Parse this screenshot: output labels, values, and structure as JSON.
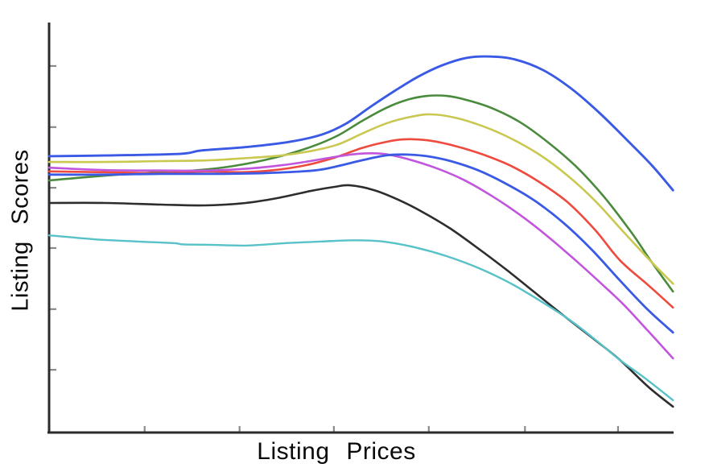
{
  "chart_data": {
    "type": "line",
    "title": "",
    "xlabel": "Listing Prices",
    "ylabel": "Listing Scores",
    "background_color": "#ffffff",
    "axis_color": "#2b2b2b",
    "tick_color": "#8a8a8a",
    "legend": "none",
    "grid": false,
    "axes_note": "no numeric tick labels shown; ticks point inward; coordinates below are percent of plot area (x: 0=left axis to 100=right end, y: 0=bottom axis to 100=top of y-axis)",
    "x_ticks_pct": [
      15.3,
      30.5,
      45.6,
      60.8,
      76.2,
      91.1
    ],
    "y_ticks_pct": [
      15.3,
      30.1,
      45.0,
      59.7,
      74.5,
      89.4
    ],
    "series": [
      {
        "name": "blue-top",
        "color": "#3a5ae6",
        "width": 2.9,
        "points": [
          [
            0,
            67.4
          ],
          [
            10.2,
            67.6
          ],
          [
            21.1,
            68.0
          ],
          [
            24.4,
            68.8
          ],
          [
            32.1,
            69.7
          ],
          [
            38.5,
            70.9
          ],
          [
            43.7,
            72.7
          ],
          [
            47.6,
            75.4
          ],
          [
            51.4,
            79.4
          ],
          [
            55.3,
            83.3
          ],
          [
            59.1,
            86.8
          ],
          [
            63.0,
            89.6
          ],
          [
            66.9,
            91.4
          ],
          [
            70.7,
            91.7
          ],
          [
            74.6,
            91.0
          ],
          [
            79.1,
            88.4
          ],
          [
            83.6,
            83.9
          ],
          [
            88.1,
            78.0
          ],
          [
            92.7,
            71.1
          ],
          [
            96.5,
            65.2
          ],
          [
            99.9,
            59.1
          ]
        ]
      },
      {
        "name": "green",
        "color": "#4a8a3c",
        "width": 2.6,
        "points": [
          [
            0,
            61.5
          ],
          [
            7.6,
            62.5
          ],
          [
            15.3,
            63.3
          ],
          [
            23.1,
            63.9
          ],
          [
            29.5,
            65.0
          ],
          [
            36.0,
            67.0
          ],
          [
            41.8,
            69.6
          ],
          [
            46.3,
            72.5
          ],
          [
            50.1,
            76.0
          ],
          [
            54.0,
            79.2
          ],
          [
            57.2,
            81.1
          ],
          [
            60.5,
            82.1
          ],
          [
            63.7,
            82.1
          ],
          [
            66.9,
            81.1
          ],
          [
            70.8,
            79.2
          ],
          [
            75.3,
            75.8
          ],
          [
            79.8,
            70.9
          ],
          [
            84.3,
            65.0
          ],
          [
            88.8,
            57.6
          ],
          [
            93.3,
            48.7
          ],
          [
            96.2,
            42.2
          ],
          [
            99.9,
            34.4
          ]
        ]
      },
      {
        "name": "olive-yellow",
        "color": "#c9c850",
        "width": 2.6,
        "points": [
          [
            0,
            66.0
          ],
          [
            8.9,
            66.0
          ],
          [
            17.9,
            66.2
          ],
          [
            25.7,
            66.4
          ],
          [
            32.1,
            67.0
          ],
          [
            37.3,
            67.6
          ],
          [
            42.4,
            68.8
          ],
          [
            46.3,
            70.3
          ],
          [
            50.1,
            72.9
          ],
          [
            54.0,
            75.4
          ],
          [
            57.9,
            77.0
          ],
          [
            61.1,
            77.6
          ],
          [
            65.0,
            76.8
          ],
          [
            69.5,
            74.7
          ],
          [
            74.0,
            71.7
          ],
          [
            78.5,
            67.8
          ],
          [
            83.0,
            62.7
          ],
          [
            87.5,
            56.4
          ],
          [
            92.0,
            48.9
          ],
          [
            96.2,
            42.0
          ],
          [
            99.9,
            36.3
          ]
        ]
      },
      {
        "name": "red",
        "color": "#ee4a3e",
        "width": 2.6,
        "points": [
          [
            0,
            63.7
          ],
          [
            8.9,
            63.5
          ],
          [
            17.9,
            63.3
          ],
          [
            25.0,
            63.7
          ],
          [
            30.8,
            63.5
          ],
          [
            36.0,
            64.0
          ],
          [
            41.1,
            65.2
          ],
          [
            45.6,
            67.0
          ],
          [
            50.1,
            69.4
          ],
          [
            53.4,
            70.7
          ],
          [
            56.6,
            71.5
          ],
          [
            60.5,
            71.3
          ],
          [
            65.0,
            69.9
          ],
          [
            69.5,
            67.8
          ],
          [
            74.0,
            65.0
          ],
          [
            78.5,
            61.1
          ],
          [
            83.0,
            56.2
          ],
          [
            87.5,
            49.3
          ],
          [
            91.4,
            42.0
          ],
          [
            95.9,
            36.0
          ],
          [
            99.9,
            30.5
          ]
        ]
      },
      {
        "name": "magenta",
        "color": "#c155dd",
        "width": 2.6,
        "points": [
          [
            0,
            64.6
          ],
          [
            8.9,
            64.0
          ],
          [
            17.9,
            63.9
          ],
          [
            25.7,
            63.9
          ],
          [
            32.1,
            64.4
          ],
          [
            37.3,
            65.2
          ],
          [
            41.8,
            66.2
          ],
          [
            45.6,
            67.2
          ],
          [
            49.5,
            68.0
          ],
          [
            53.4,
            68.0
          ],
          [
            57.2,
            66.8
          ],
          [
            61.8,
            64.6
          ],
          [
            66.3,
            61.7
          ],
          [
            70.8,
            57.8
          ],
          [
            75.3,
            53.2
          ],
          [
            79.8,
            47.9
          ],
          [
            84.3,
            42.0
          ],
          [
            88.8,
            35.8
          ],
          [
            92.0,
            31.2
          ],
          [
            95.9,
            24.8
          ],
          [
            99.9,
            18.1
          ]
        ]
      },
      {
        "name": "blue-middle",
        "color": "#3a5ae6",
        "width": 2.8,
        "points": [
          [
            0,
            62.9
          ],
          [
            8.9,
            62.9
          ],
          [
            17.9,
            63.1
          ],
          [
            26.9,
            63.1
          ],
          [
            34.7,
            63.3
          ],
          [
            42.4,
            63.9
          ],
          [
            46.3,
            65.0
          ],
          [
            50.1,
            66.4
          ],
          [
            54.0,
            67.6
          ],
          [
            57.2,
            67.8
          ],
          [
            60.5,
            67.4
          ],
          [
            64.3,
            66.2
          ],
          [
            68.8,
            63.9
          ],
          [
            73.4,
            60.5
          ],
          [
            77.9,
            56.4
          ],
          [
            82.4,
            51.1
          ],
          [
            86.9,
            44.6
          ],
          [
            91.4,
            37.1
          ],
          [
            95.9,
            29.9
          ],
          [
            99.9,
            24.4
          ]
        ]
      },
      {
        "name": "black",
        "color": "#2d2d2d",
        "width": 2.6,
        "points": [
          [
            0,
            56.0
          ],
          [
            8.9,
            56.0
          ],
          [
            17.9,
            55.6
          ],
          [
            25.0,
            55.4
          ],
          [
            31.5,
            56.0
          ],
          [
            36.6,
            57.2
          ],
          [
            41.8,
            58.9
          ],
          [
            45.6,
            59.9
          ],
          [
            48.2,
            60.3
          ],
          [
            52.1,
            59.1
          ],
          [
            55.9,
            56.8
          ],
          [
            59.8,
            53.8
          ],
          [
            64.3,
            49.7
          ],
          [
            68.8,
            44.8
          ],
          [
            73.4,
            39.5
          ],
          [
            77.9,
            34.0
          ],
          [
            82.4,
            28.5
          ],
          [
            86.9,
            23.2
          ],
          [
            91.4,
            17.7
          ],
          [
            95.9,
            11.2
          ],
          [
            99.9,
            6.3
          ]
        ]
      },
      {
        "name": "teal",
        "color": "#57c2c7",
        "width": 2.4,
        "points": [
          [
            0,
            48.1
          ],
          [
            7.6,
            47.1
          ],
          [
            14.1,
            46.6
          ],
          [
            19.9,
            46.2
          ],
          [
            21.5,
            45.9
          ],
          [
            25.7,
            45.8
          ],
          [
            31.5,
            45.6
          ],
          [
            37.9,
            46.2
          ],
          [
            43.7,
            46.6
          ],
          [
            48.9,
            46.9
          ],
          [
            53.4,
            46.6
          ],
          [
            58.5,
            45.2
          ],
          [
            63.7,
            43.0
          ],
          [
            68.8,
            40.1
          ],
          [
            74.0,
            36.3
          ],
          [
            79.2,
            31.6
          ],
          [
            83.7,
            27.1
          ],
          [
            87.5,
            22.6
          ],
          [
            91.4,
            17.7
          ],
          [
            95.3,
            13.4
          ],
          [
            99.9,
            7.9
          ]
        ]
      }
    ]
  }
}
